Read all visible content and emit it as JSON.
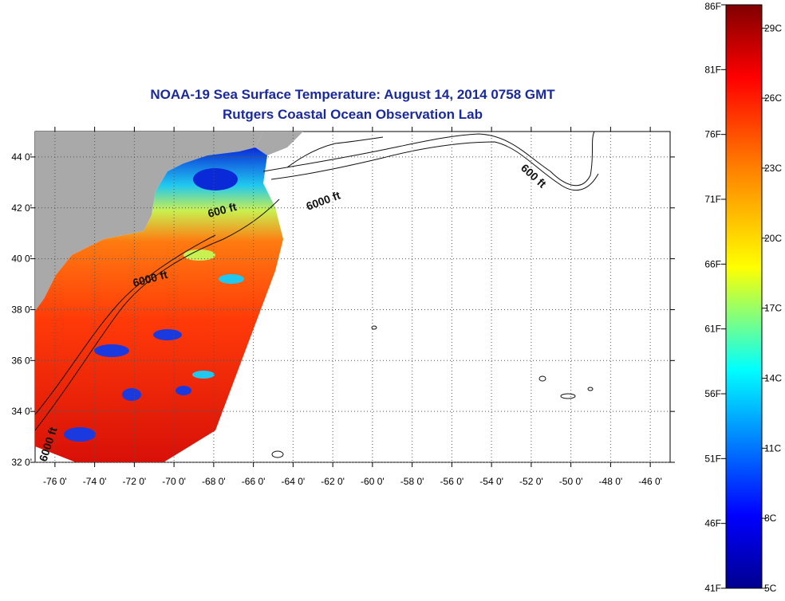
{
  "header": {
    "title": "NOAA-19 Sea Surface Temperature:  August 14, 2014 0758 GMT",
    "subtitle": "Rutgers Coastal Ocean Observation Lab"
  },
  "map": {
    "lon_range": [
      -77,
      -45
    ],
    "lat_range": [
      32,
      45
    ],
    "lon_ticks": [
      "-76 0'",
      "-74 0'",
      "-72 0'",
      "-70 0'",
      "-68 0'",
      "-66 0'",
      "-64 0'",
      "-62 0'",
      "-60 0'",
      "-58 0'",
      "-56 0'",
      "-54 0'",
      "-52 0'",
      "-50 0'",
      "-48 0'",
      "-46 0'"
    ],
    "lat_ticks": [
      "32 0'",
      "34 0'",
      "36 0'",
      "38 0'",
      "40 0'",
      "42 0'",
      "44 0'"
    ],
    "grid": "dotted",
    "land_color": "#a9a9a9",
    "contour_labels": [
      "600 ft",
      "6000 ft",
      "6000 ft",
      "600 ft",
      "6000 ft"
    ]
  },
  "colorbar": {
    "min_c": 5,
    "max_c": 30,
    "fahrenheit_labels": [
      "86F",
      "81F",
      "76F",
      "71F",
      "66F",
      "61F",
      "56F",
      "51F",
      "46F",
      "41F"
    ],
    "celsius_labels": [
      "29C",
      "26C",
      "23C",
      "20C",
      "17C",
      "14C",
      "11C",
      "8C",
      "5C"
    ],
    "colors": [
      "#00008f",
      "#0000ff",
      "#00ffff",
      "#ffff00",
      "#ff8000",
      "#ff0000",
      "#800000"
    ]
  }
}
